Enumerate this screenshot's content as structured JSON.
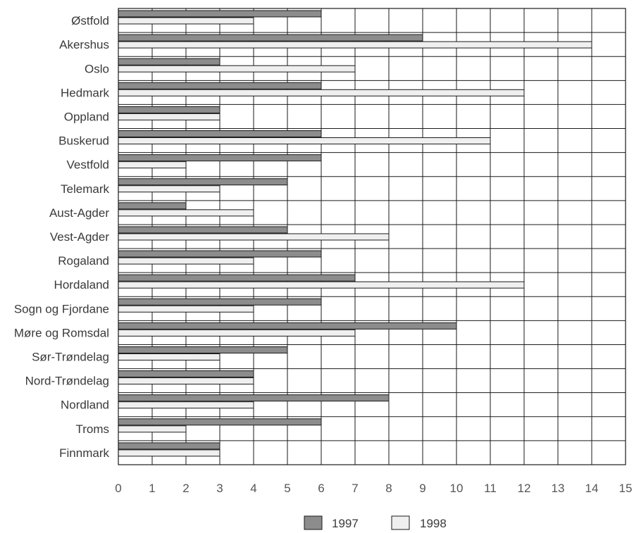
{
  "chart_data": {
    "type": "bar",
    "orientation": "horizontal",
    "categories": [
      "Østfold",
      "Akershus",
      "Oslo",
      "Hedmark",
      "Oppland",
      "Buskerud",
      "Vestfold",
      "Telemark",
      "Aust-Agder",
      "Vest-Agder",
      "Rogaland",
      "Hordaland",
      "Sogn og Fjordane",
      "Møre og Romsdal",
      "Sør-Trøndelag",
      "Nord-Trøndelag",
      "Nordland",
      "Troms",
      "Finnmark"
    ],
    "series": [
      {
        "name": "1997",
        "color": "#8c8c8c",
        "values": [
          6,
          9,
          3,
          6,
          3,
          6,
          6,
          5,
          2,
          5,
          6,
          7,
          6,
          10,
          5,
          4,
          8,
          6,
          3
        ]
      },
      {
        "name": "1998",
        "color": "#efefef",
        "values": [
          4,
          14,
          7,
          12,
          3,
          11,
          2,
          3,
          4,
          8,
          4,
          12,
          4,
          7,
          3,
          4,
          4,
          2,
          3
        ]
      }
    ],
    "xticks": [
      "0",
      "1",
      "2",
      "3",
      "4",
      "5",
      "6",
      "7",
      "8",
      "9",
      "10",
      "11",
      "12",
      "13",
      "14",
      "15"
    ],
    "xlim": [
      0,
      15
    ],
    "grid": true,
    "legend_position": "bottom-center"
  }
}
